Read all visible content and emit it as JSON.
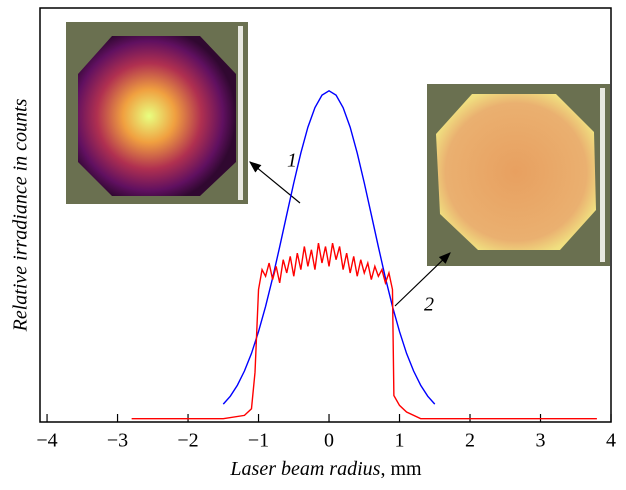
{
  "chart_data": {
    "type": "line",
    "xlabel": [
      "Laser beam radius",
      ", mm"
    ],
    "ylabel": "Relative irradiance in counts",
    "xlim": [
      -4.1,
      4.0
    ],
    "ylim": [
      0,
      1.25
    ],
    "xticks": [
      {
        "value": -4,
        "label": "−4"
      },
      {
        "value": -3,
        "label": "−3"
      },
      {
        "value": -2,
        "label": "−2"
      },
      {
        "value": -1,
        "label": "−1"
      },
      0,
      1,
      2,
      3,
      4
    ],
    "annotations": [
      "1",
      "2"
    ],
    "series": [
      {
        "name": "1",
        "color": "#0000ff",
        "x": [
          -1.5,
          -1.4,
          -1.3,
          -1.2,
          -1.1,
          -1.0,
          -0.9,
          -0.8,
          -0.7,
          -0.6,
          -0.5,
          -0.4,
          -0.3,
          -0.2,
          -0.1,
          0,
          0.1,
          0.2,
          0.3,
          0.4,
          0.5,
          0.6,
          0.7,
          0.8,
          0.9,
          1.0,
          1.1,
          1.2,
          1.3,
          1.4,
          1.5
        ],
        "values": [
          0.054,
          0.078,
          0.111,
          0.154,
          0.207,
          0.273,
          0.349,
          0.435,
          0.529,
          0.626,
          0.722,
          0.812,
          0.89,
          0.949,
          0.987,
          1,
          0.987,
          0.949,
          0.89,
          0.812,
          0.722,
          0.626,
          0.529,
          0.435,
          0.349,
          0.273,
          0.207,
          0.154,
          0.111,
          0.078,
          0.054
        ]
      },
      {
        "name": "2",
        "color": "#ff0000",
        "x": [
          -2.8,
          -1.5,
          -1.2,
          -1.1,
          -1.05,
          -1.0,
          -0.95,
          -0.9,
          -0.85,
          -0.8,
          -0.75,
          -0.7,
          -0.65,
          -0.6,
          -0.55,
          -0.5,
          -0.45,
          -0.4,
          -0.35,
          -0.3,
          -0.25,
          -0.2,
          -0.15,
          -0.1,
          -0.05,
          0,
          0.05,
          0.1,
          0.15,
          0.2,
          0.25,
          0.3,
          0.35,
          0.4,
          0.45,
          0.5,
          0.55,
          0.6,
          0.65,
          0.7,
          0.75,
          0.8,
          0.85,
          0.9,
          0.92,
          1.0,
          1.1,
          1.3,
          3.8
        ],
        "values": [
          0.01,
          0.01,
          0.02,
          0.04,
          0.15,
          0.4,
          0.46,
          0.44,
          0.48,
          0.43,
          0.47,
          0.42,
          0.49,
          0.45,
          0.5,
          0.44,
          0.51,
          0.46,
          0.53,
          0.47,
          0.52,
          0.46,
          0.54,
          0.48,
          0.53,
          0.47,
          0.54,
          0.49,
          0.53,
          0.46,
          0.51,
          0.45,
          0.5,
          0.44,
          0.49,
          0.45,
          0.48,
          0.43,
          0.47,
          0.44,
          0.46,
          0.42,
          0.45,
          0.4,
          0.08,
          0.05,
          0.03,
          0.01,
          0.01
        ]
      }
    ]
  }
}
